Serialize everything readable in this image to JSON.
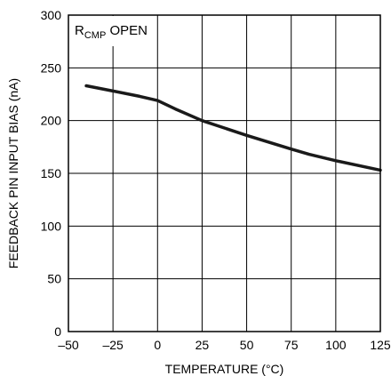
{
  "chart_data": {
    "type": "line",
    "xlabel": "TEMPERATURE (°C)",
    "ylabel": "FEEDBACK PIN INPUT BIAS (nA)",
    "xlim": [
      -50,
      125
    ],
    "ylim": [
      0,
      300
    ],
    "x_ticks": [
      -50,
      -25,
      0,
      25,
      50,
      75,
      100,
      125
    ],
    "x_tick_labels": [
      "–50",
      "–25",
      "0",
      "25",
      "50",
      "75",
      "100",
      "125"
    ],
    "y_ticks": [
      0,
      50,
      100,
      150,
      200,
      250,
      300
    ],
    "y_tick_labels": [
      "0",
      "50",
      "100",
      "150",
      "200",
      "250",
      "300"
    ],
    "grid": true,
    "legend": "none",
    "annotation": {
      "main": "R",
      "sub": "CMP",
      "rest": " OPEN"
    },
    "series": [
      {
        "color": "#1a1a1a",
        "x": [
          -40,
          -25,
          -10,
          0,
          10,
          25,
          50,
          75,
          85,
          100,
          125
        ],
        "y": [
          233,
          228,
          223,
          219,
          211,
          200,
          186,
          173,
          168,
          162,
          153
        ]
      }
    ]
  }
}
